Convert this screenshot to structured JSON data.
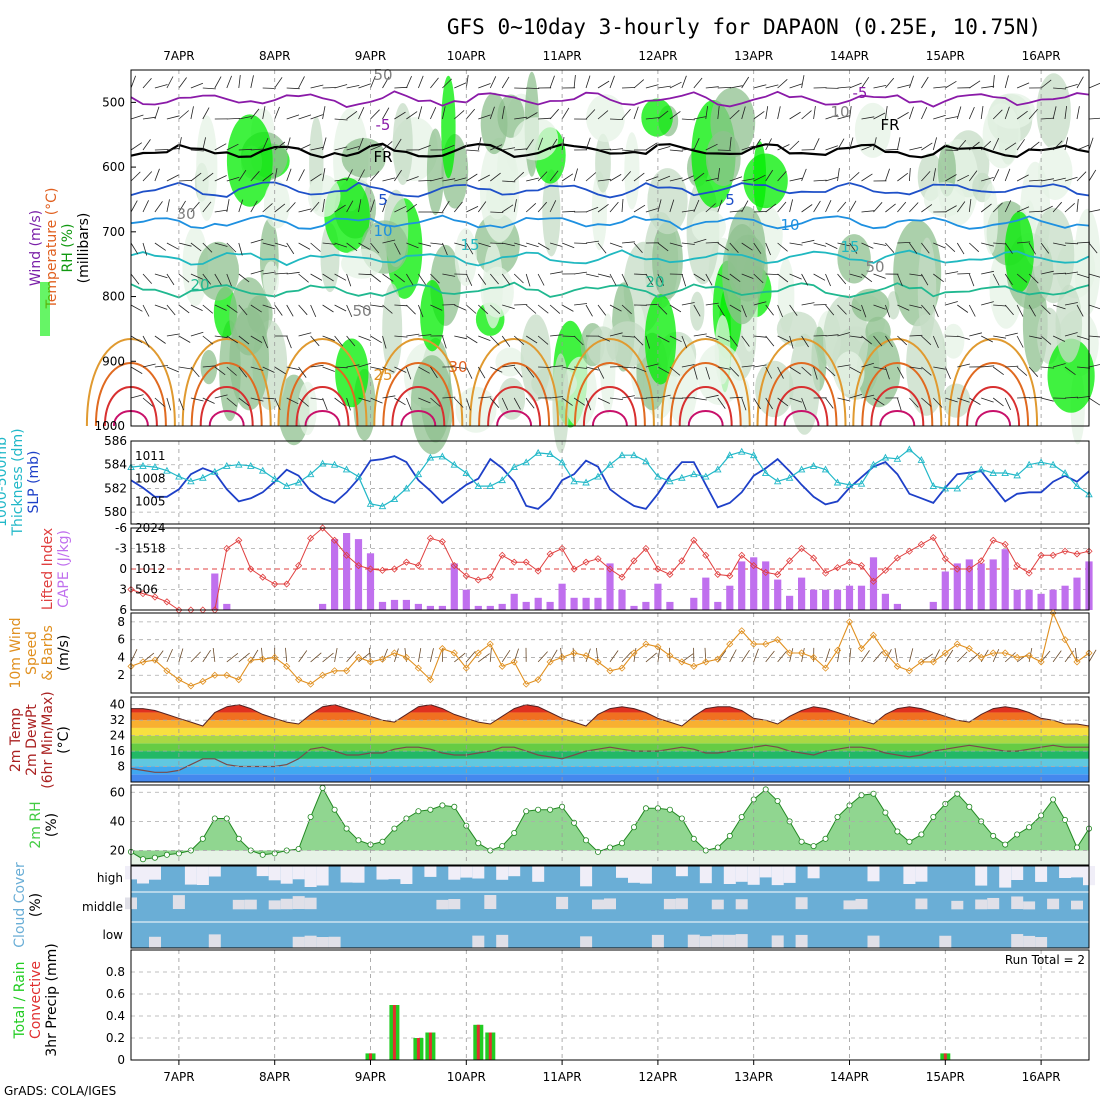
{
  "title": "GFS 0~10day 3-hourly for DAPAON (0.25E, 10.75N)",
  "credit": "GrADS: COLA/IGES",
  "dates": [
    "7APR",
    "8APR",
    "9APR",
    "10APR",
    "11APR",
    "12APR",
    "13APR",
    "14APR",
    "15APR",
    "16APR"
  ],
  "colors": {
    "rh_light": "#e6f3e6",
    "rh_mid": "#c6dcc6",
    "rh_dark": "#8fc08f",
    "rh_bright": "#00ee00",
    "sky_blue": "#6aaed6",
    "clear": "#f0eef8",
    "slp": "#1e40c8",
    "thick": "#22b8c8",
    "li": "#e04040",
    "cape": "#c070ee",
    "wind": "#e09020",
    "rh2m": "#44cc44",
    "precip_total": "#22cc22",
    "precip_conv": "#e03030"
  },
  "panels": {
    "upper": {
      "ylabels": [
        "Wind (m/s)",
        "Temperature (°C)",
        "RH (%)",
        "(millibars)"
      ],
      "ticks": [
        "500",
        "600",
        "700",
        "800",
        "900",
        "1000"
      ],
      "contour_labels": [
        {
          "text": "-5",
          "color": "#8a1aa8"
        },
        {
          "text": "-5",
          "color": "#8a1aa8"
        },
        {
          "text": "FR",
          "color": "#000000"
        },
        {
          "text": "FR",
          "color": "#000000"
        },
        {
          "text": "5",
          "color": "#1e50c8"
        },
        {
          "text": "5",
          "color": "#1e50c8"
        },
        {
          "text": "10",
          "color": "#1e90e0"
        },
        {
          "text": "10",
          "color": "#1e90e0"
        },
        {
          "text": "15",
          "color": "#20b8c0"
        },
        {
          "text": "15",
          "color": "#20b8c0"
        },
        {
          "text": "20",
          "color": "#20b890"
        },
        {
          "text": "20",
          "color": "#20b890"
        },
        {
          "text": "25",
          "color": "#e09020"
        },
        {
          "text": "30",
          "color": "#e06020"
        },
        {
          "text": "50",
          "color": "#808080"
        },
        {
          "text": "30",
          "color": "#808080"
        },
        {
          "text": "50",
          "color": "#808080"
        },
        {
          "text": "50",
          "color": "#808080"
        },
        {
          "text": "10",
          "color": "#808080"
        }
      ]
    },
    "slp": {
      "ylabels": [
        "1000-500mb",
        "Thickness (dm)",
        "SLP (mb)"
      ],
      "left_ticks": [
        "586",
        "584",
        "582",
        "580"
      ],
      "right_ticks": [
        "1011",
        "1008",
        "1005"
      ]
    },
    "cape": {
      "ylabels": [
        "Lifted Index",
        "CAPE (J/kg)"
      ],
      "left_ticks": [
        "-6",
        "-3",
        "0",
        "3",
        "6"
      ],
      "right_ticks": [
        "2024",
        "1518",
        "1012",
        "506"
      ]
    },
    "wind": {
      "ylabels": [
        "10m Wind",
        "Speed",
        "& Barbs",
        "(m/s)"
      ],
      "ticks": [
        "8",
        "6",
        "4",
        "2"
      ]
    },
    "temp": {
      "ylabels": [
        "2m Temp",
        "2m DewPt",
        "(6hr Min/Max)",
        "(°C)"
      ],
      "ticks": [
        "40",
        "32",
        "24",
        "16",
        "8"
      ]
    },
    "rh2m": {
      "ylabels": [
        "2m RH",
        "(%)"
      ],
      "ticks": [
        "60",
        "40",
        "20"
      ]
    },
    "cloud": {
      "ylabels": [
        "Cloud Cover",
        "(%)"
      ],
      "levels": [
        "high",
        "middle",
        "low"
      ]
    },
    "precip": {
      "ylabels": [
        "Total / Rain",
        "Convective",
        "3hr Precip (mm)"
      ],
      "ticks": [
        "0.8",
        "0.6",
        "0.4",
        "0.2",
        "0"
      ],
      "run_total": "Run Total = 2"
    }
  },
  "chart_data": {
    "type": "line",
    "x_label_dates": [
      "7APR",
      "8APR",
      "9APR",
      "10APR",
      "11APR",
      "12APR",
      "13APR",
      "14APR",
      "15APR",
      "16APR"
    ],
    "n_steps": 81,
    "step_hours": 3,
    "pressure_axis": {
      "ylim": [
        1000,
        450
      ],
      "ticks": [
        500,
        600,
        700,
        800,
        900,
        1000
      ]
    },
    "contour_levels": [
      {
        "label": "-5",
        "hpa": 495,
        "color": "#8a1aa8"
      },
      {
        "label": "FR",
        "hpa": 575,
        "color": "#000000"
      },
      {
        "label": "5",
        "hpa": 635,
        "color": "#1e50c8"
      },
      {
        "label": "10",
        "hpa": 685,
        "color": "#1e90e0"
      },
      {
        "label": "15",
        "hpa": 740,
        "color": "#20b8c0"
      },
      {
        "label": "20",
        "hpa": 790,
        "color": "#20b890"
      }
    ],
    "series": [
      {
        "name": "1000-500mb Thickness (dm)",
        "ylim": [
          579,
          586
        ],
        "values": [
          583.8,
          583.9,
          583.8,
          583.5,
          583.0,
          582.6,
          582.9,
          583.4,
          583.9,
          584.0,
          583.9,
          583.5,
          582.8,
          582.2,
          582.5,
          583.2,
          584.1,
          584.0,
          583.6,
          583.0,
          580.7,
          580.5,
          581.1,
          582.0,
          583.2,
          584.6,
          584.7,
          584.0,
          583.3,
          582.2,
          582.2,
          582.7,
          583.8,
          584.2,
          585.0,
          584.9,
          584.2,
          582.6,
          582.5,
          583.0,
          584.0,
          584.8,
          584.8,
          584.3,
          583.0,
          582.6,
          582.9,
          583.2,
          583.0,
          583.6,
          584.8,
          585.1,
          584.8,
          583.3,
          582.6,
          582.9,
          583.6,
          583.9,
          583.6,
          582.5,
          582.3,
          582.4,
          584.0,
          584.6,
          584.5,
          585.3,
          584.4,
          582.2,
          582.0,
          582.0,
          583.0,
          583.6,
          583.3,
          583.3,
          583.1,
          584.0,
          584.2,
          584.0,
          583.3,
          582.2,
          581.5
        ]
      },
      {
        "name": "SLP (mb)",
        "ylim": [
          1002,
          1013
        ],
        "values": [
          1007.8,
          1006.8,
          1005.6,
          1005.6,
          1006.6,
          1008.6,
          1009.4,
          1008.8,
          1006.6,
          1005.0,
          1005.4,
          1006.2,
          1007.6,
          1009.2,
          1008.4,
          1006.4,
          1005.4,
          1004.8,
          1006.2,
          1008.0,
          1010.4,
          1010.6,
          1011.0,
          1010.2,
          1007.8,
          1006.4,
          1004.8,
          1006.0,
          1007.2,
          1008.0,
          1010.6,
          1009.4,
          1007.6,
          1004.4,
          1004.0,
          1005.4,
          1007.8,
          1008.6,
          1010.4,
          1009.6,
          1006.6,
          1005.4,
          1004.4,
          1004.0,
          1006.0,
          1008.4,
          1010.2,
          1010.2,
          1007.2,
          1004.2,
          1004.8,
          1006.2,
          1008.4,
          1009.4,
          1010.6,
          1009.0,
          1007.2,
          1005.6,
          1004.6,
          1005.0,
          1006.8,
          1008.2,
          1009.6,
          1010.2,
          1008.6,
          1006.0,
          1005.4,
          1004.8,
          1006.8,
          1008.6,
          1008.8,
          1009.0,
          1007.0,
          1005.0,
          1006.0,
          1006.2,
          1006.2,
          1007.6,
          1008.4,
          1007.6,
          1009.0
        ]
      },
      {
        "name": "Lifted Index",
        "ylim": [
          6,
          -6
        ],
        "values": [
          3.0,
          3.6,
          4.1,
          4.8,
          6.0,
          6.0,
          6.0,
          6.0,
          -3.0,
          -4.2,
          0.0,
          1.2,
          2.2,
          2.2,
          -0.5,
          -4.5,
          -6.0,
          -4.2,
          -2.0,
          -0.5,
          0.0,
          0.2,
          0.0,
          -1.0,
          -0.5,
          -4.5,
          -4.0,
          -0.5,
          1.0,
          1.6,
          1.2,
          -2.0,
          -1.0,
          -1.0,
          0.3,
          -2.2,
          -3.0,
          0.0,
          -1.0,
          -1.5,
          0.0,
          1.2,
          -1.2,
          -3.0,
          0.0,
          0.8,
          -1.2,
          -4.2,
          -2.0,
          0.8,
          1.0,
          -2.0,
          -0.5,
          0.5,
          0.8,
          -1.2,
          -3.0,
          -1.6,
          0.6,
          -0.2,
          -1.0,
          -0.5,
          1.8,
          0.2,
          -1.6,
          -2.6,
          -3.6,
          -4.6,
          -1.5,
          0.0,
          0.0,
          -1.2,
          -4.2,
          -3.6,
          -0.5,
          0.6,
          -2.0,
          -2.0,
          -2.6,
          -2.2,
          -2.6
        ]
      },
      {
        "name": "CAPE (J/kg)",
        "ylim": [
          0,
          2024
        ],
        "values": [
          0,
          0,
          0,
          0,
          0,
          0,
          0,
          900,
          150,
          0,
          0,
          0,
          0,
          0,
          0,
          0,
          150,
          1750,
          1900,
          1750,
          1400,
          200,
          250,
          250,
          150,
          100,
          100,
          1150,
          500,
          100,
          100,
          150,
          400,
          200,
          300,
          200,
          650,
          300,
          300,
          300,
          1150,
          500,
          100,
          200,
          650,
          200,
          0,
          300,
          800,
          200,
          600,
          1200,
          1300,
          1200,
          750,
          350,
          800,
          500,
          500,
          500,
          600,
          600,
          1300,
          400,
          150,
          0,
          0,
          200,
          950,
          1150,
          1250,
          1150,
          1250,
          1500,
          500,
          500,
          400,
          500,
          600,
          800,
          1200
        ]
      },
      {
        "name": "10m Wind Speed",
        "ylim": [
          0,
          9
        ],
        "values": [
          3.0,
          3.5,
          3.7,
          2.5,
          1.5,
          0.8,
          1.3,
          2.0,
          2.0,
          1.5,
          3.7,
          3.8,
          4.0,
          3.0,
          1.5,
          1.0,
          2.0,
          2.5,
          2.5,
          4.0,
          3.5,
          3.8,
          4.5,
          4.0,
          2.8,
          1.5,
          5.0,
          4.5,
          2.8,
          4.5,
          5.5,
          3.0,
          3.5,
          1.0,
          1.5,
          3.5,
          4.0,
          4.5,
          4.2,
          3.5,
          2.5,
          2.8,
          4.5,
          5.5,
          5.2,
          4.2,
          3.5,
          3.0,
          3.5,
          3.8,
          5.5,
          7.0,
          5.5,
          5.5,
          6.0,
          4.5,
          4.5,
          4.0,
          2.8,
          4.8,
          8.0,
          5.0,
          6.5,
          4.5,
          3.0,
          2.5,
          3.5,
          3.5,
          4.5,
          5.5,
          5.0,
          4.0,
          4.5,
          4.5,
          4.0,
          4.2,
          3.5,
          9.0,
          6.0,
          3.5,
          4.5
        ]
      },
      {
        "name": "2m Temp",
        "ylim": [
          0,
          44
        ],
        "values": [
          38,
          38,
          37,
          35,
          33,
          31,
          29,
          36,
          39,
          40,
          38,
          35,
          33,
          31,
          30,
          35,
          39,
          40,
          38,
          36,
          34,
          32,
          31,
          35,
          39,
          40,
          38,
          35,
          33,
          31,
          30,
          34,
          38,
          40,
          39,
          36,
          33,
          31,
          29,
          35,
          38,
          39,
          38,
          36,
          33,
          31,
          29,
          34,
          38,
          39,
          39,
          37,
          33,
          32,
          30,
          34,
          37,
          39,
          38,
          36,
          34,
          32,
          30,
          35,
          38,
          39,
          38,
          36,
          34,
          32,
          31,
          35,
          38,
          39,
          38,
          36,
          33,
          32,
          30,
          30,
          29
        ]
      },
      {
        "name": "2m DewPt",
        "ylim": [
          0,
          44
        ],
        "values": [
          7,
          6,
          5,
          5,
          6,
          9,
          12,
          12,
          9,
          8,
          8,
          8,
          8,
          9,
          12,
          17,
          18,
          16,
          14,
          14,
          15,
          15,
          17,
          18,
          18,
          17,
          15,
          14,
          14,
          15,
          16,
          18,
          18,
          16,
          14,
          13,
          12,
          14,
          16,
          17,
          18,
          17,
          16,
          16,
          16,
          17,
          18,
          17,
          15,
          15,
          16,
          17,
          18,
          19,
          18,
          16,
          15,
          14,
          16,
          17,
          18,
          18,
          17,
          15,
          14,
          13,
          14,
          16,
          17,
          18,
          19,
          18,
          17,
          16,
          16,
          17,
          18,
          19,
          18,
          18,
          18
        ]
      },
      {
        "name": "2m RH (%)",
        "ylim": [
          10,
          65
        ],
        "values": [
          19,
          14,
          15,
          17,
          18,
          20,
          28,
          42,
          42,
          28,
          20,
          17,
          18,
          20,
          21,
          43,
          63,
          48,
          35,
          27,
          24,
          26,
          35,
          42,
          47,
          48,
          51,
          50,
          37,
          25,
          20,
          23,
          32,
          47,
          48,
          48,
          50,
          39,
          27,
          19,
          22,
          25,
          36,
          49,
          49,
          48,
          42,
          28,
          20,
          22,
          30,
          43,
          55,
          62,
          54,
          40,
          26,
          23,
          28,
          43,
          51,
          58,
          59,
          46,
          33,
          26,
          31,
          43,
          52,
          59,
          50,
          40,
          30,
          24,
          31,
          36,
          44,
          55,
          41,
          22,
          35
        ]
      },
      {
        "name": "3hr Precip Total (mm)",
        "ylim": [
          0,
          1.0
        ],
        "values": [
          0,
          0,
          0,
          0,
          0,
          0,
          0,
          0,
          0,
          0,
          0,
          0,
          0,
          0,
          0,
          0,
          0,
          0,
          0,
          0,
          0.06,
          0.0,
          0.5,
          0.0,
          0.2,
          0.25,
          0,
          0,
          0,
          0.32,
          0.25,
          0,
          0,
          0,
          0,
          0,
          0,
          0,
          0,
          0,
          0,
          0,
          0,
          0,
          0,
          0,
          0,
          0,
          0,
          0,
          0,
          0,
          0,
          0,
          0,
          0,
          0,
          0,
          0,
          0,
          0,
          0,
          0,
          0,
          0,
          0,
          0,
          0,
          0.06,
          0,
          0,
          0,
          0,
          0,
          0,
          0,
          0,
          0,
          0,
          0,
          0
        ]
      }
    ]
  }
}
